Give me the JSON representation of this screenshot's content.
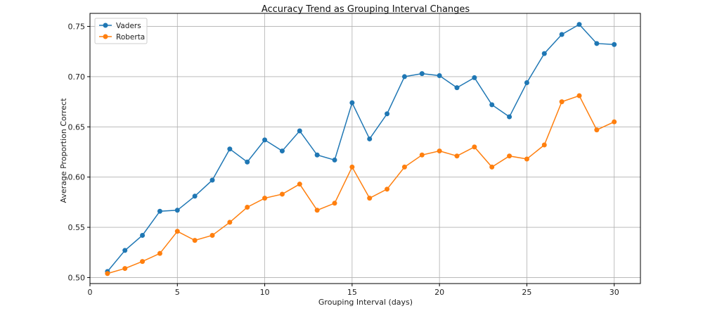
{
  "chart_data": {
    "type": "line",
    "title": "Accuracy Trend as Grouping Interval Changes",
    "xlabel": "Grouping Interval (days)",
    "ylabel": "Average Proportion Correct",
    "xlim": [
      0,
      31.5
    ],
    "ylim": [
      0.494,
      0.763
    ],
    "xticks": [
      0,
      5,
      10,
      15,
      20,
      25,
      30
    ],
    "yticks": [
      0.5,
      0.55,
      0.6,
      0.65,
      0.7,
      0.75
    ],
    "ytick_labels": [
      "0.50",
      "0.55",
      "0.60",
      "0.65",
      "0.70",
      "0.75"
    ],
    "grid": true,
    "legend": "top-left",
    "x": [
      1,
      2,
      3,
      4,
      5,
      6,
      7,
      8,
      9,
      10,
      11,
      12,
      13,
      14,
      15,
      16,
      17,
      18,
      19,
      20,
      21,
      22,
      23,
      24,
      25,
      26,
      27,
      28,
      29,
      30
    ],
    "series": [
      {
        "name": "Vaders",
        "color": "#1f77b4",
        "marker": "circle",
        "values": [
          0.506,
          0.527,
          0.542,
          0.566,
          0.567,
          0.581,
          0.597,
          0.628,
          0.615,
          0.637,
          0.626,
          0.646,
          0.622,
          0.617,
          0.674,
          0.638,
          0.663,
          0.7,
          0.703,
          0.701,
          0.689,
          0.699,
          0.672,
          0.66,
          0.694,
          0.723,
          0.742,
          0.752,
          0.733,
          0.732
        ]
      },
      {
        "name": "Roberta",
        "color": "#ff7f0e",
        "marker": "circle",
        "values": [
          0.504,
          0.509,
          0.516,
          0.524,
          0.546,
          0.537,
          0.542,
          0.555,
          0.57,
          0.579,
          0.583,
          0.593,
          0.567,
          0.574,
          0.61,
          0.579,
          0.588,
          0.61,
          0.622,
          0.626,
          0.621,
          0.63,
          0.61,
          0.621,
          0.618,
          0.632,
          0.675,
          0.681,
          0.647,
          0.655
        ]
      }
    ]
  }
}
